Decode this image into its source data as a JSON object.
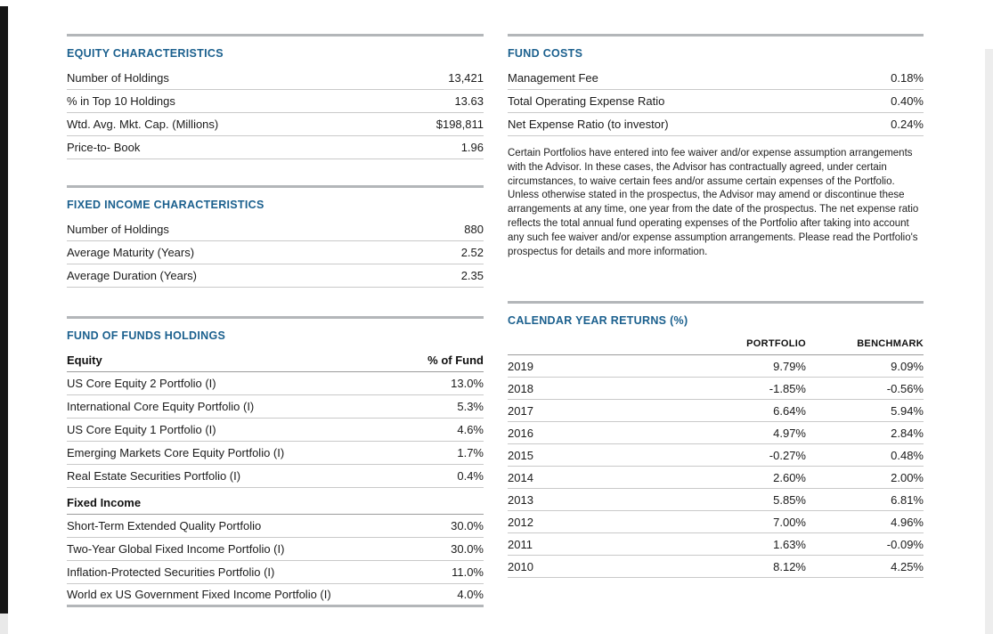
{
  "theme": {
    "accent": "#1b608e",
    "barcolor": "#b3b6b9"
  },
  "equity_characteristics": {
    "title": "EQUITY CHARACTERISTICS",
    "rows": [
      {
        "label": "Number of Holdings",
        "value": "13,421"
      },
      {
        "label": "% in Top 10 Holdings",
        "value": "13.63"
      },
      {
        "label": "Wtd. Avg. Mkt. Cap. (Millions)",
        "value": "$198,811"
      },
      {
        "label": "Price-to- Book",
        "value": "1.96"
      }
    ]
  },
  "fixed_income_characteristics": {
    "title": "FIXED INCOME CHARACTERISTICS",
    "rows": [
      {
        "label": "Number of Holdings",
        "value": "880"
      },
      {
        "label": "Average Maturity (Years)",
        "value": "2.52"
      },
      {
        "label": "Average Duration (Years)",
        "value": "2.35"
      }
    ]
  },
  "fund_of_funds_holdings": {
    "title": "FUND OF FUNDS HOLDINGS",
    "equity_group": {
      "name": "Equity",
      "value_header": "% of Fund",
      "rows": [
        {
          "label": "US Core Equity 2 Portfolio (I)",
          "value": "13.0%"
        },
        {
          "label": "International Core Equity Portfolio (I)",
          "value": "5.3%"
        },
        {
          "label": "US Core Equity 1 Portfolio (I)",
          "value": "4.6%"
        },
        {
          "label": "Emerging Markets Core Equity Portfolio (I)",
          "value": "1.7%"
        },
        {
          "label": "Real Estate Securities Portfolio (I)",
          "value": "0.4%"
        }
      ]
    },
    "fixed_income_group": {
      "name": "Fixed Income",
      "rows": [
        {
          "label": "Short-Term Extended Quality Portfolio",
          "value": "30.0%"
        },
        {
          "label": "Two-Year Global Fixed Income Portfolio (I)",
          "value": "30.0%"
        },
        {
          "label": "Inflation-Protected Securities Portfolio (I)",
          "value": "11.0%"
        },
        {
          "label": "World ex US Government Fixed Income Portfolio (I)",
          "value": "4.0%"
        }
      ]
    }
  },
  "fund_costs": {
    "title": "FUND COSTS",
    "rows": [
      {
        "label": "Management Fee",
        "value": "0.18%"
      },
      {
        "label": "Total Operating Expense Ratio",
        "value": "0.40%"
      },
      {
        "label": "Net Expense Ratio (to investor)",
        "value": "0.24%"
      }
    ],
    "disclosure": "Certain Portfolios have entered into fee waiver and/or expense assumption arrangements with the Advisor. In these cases, the Advisor has contractually agreed, under certain circumstances, to waive certain fees and/or assume certain expenses of the Portfolio. Unless otherwise stated in the prospectus, the Advisor may amend or discontinue these arrangements at any time, one year from the date of the prospectus. The net expense ratio reflects the total annual fund operating expenses of the Portfolio after taking into account any such fee waiver and/or expense assumption arrangements. Please read the Portfolio's prospectus for details and more information."
  },
  "calendar_year_returns": {
    "title": "CALENDAR YEAR RETURNS (%)",
    "columns": {
      "portfolio": "PORTFOLIO",
      "benchmark": "BENCHMARK"
    },
    "rows": [
      {
        "year": "2019",
        "portfolio": "9.79%",
        "benchmark": "9.09%"
      },
      {
        "year": "2018",
        "portfolio": "-1.85%",
        "benchmark": "-0.56%"
      },
      {
        "year": "2017",
        "portfolio": "6.64%",
        "benchmark": "5.94%"
      },
      {
        "year": "2016",
        "portfolio": "4.97%",
        "benchmark": "2.84%"
      },
      {
        "year": "2015",
        "portfolio": "-0.27%",
        "benchmark": "0.48%"
      },
      {
        "year": "2014",
        "portfolio": "2.60%",
        "benchmark": "2.00%"
      },
      {
        "year": "2013",
        "portfolio": "5.85%",
        "benchmark": "6.81%"
      },
      {
        "year": "2012",
        "portfolio": "7.00%",
        "benchmark": "4.96%"
      },
      {
        "year": "2011",
        "portfolio": "1.63%",
        "benchmark": "-0.09%"
      },
      {
        "year": "2010",
        "portfolio": "8.12%",
        "benchmark": "4.25%"
      }
    ]
  }
}
